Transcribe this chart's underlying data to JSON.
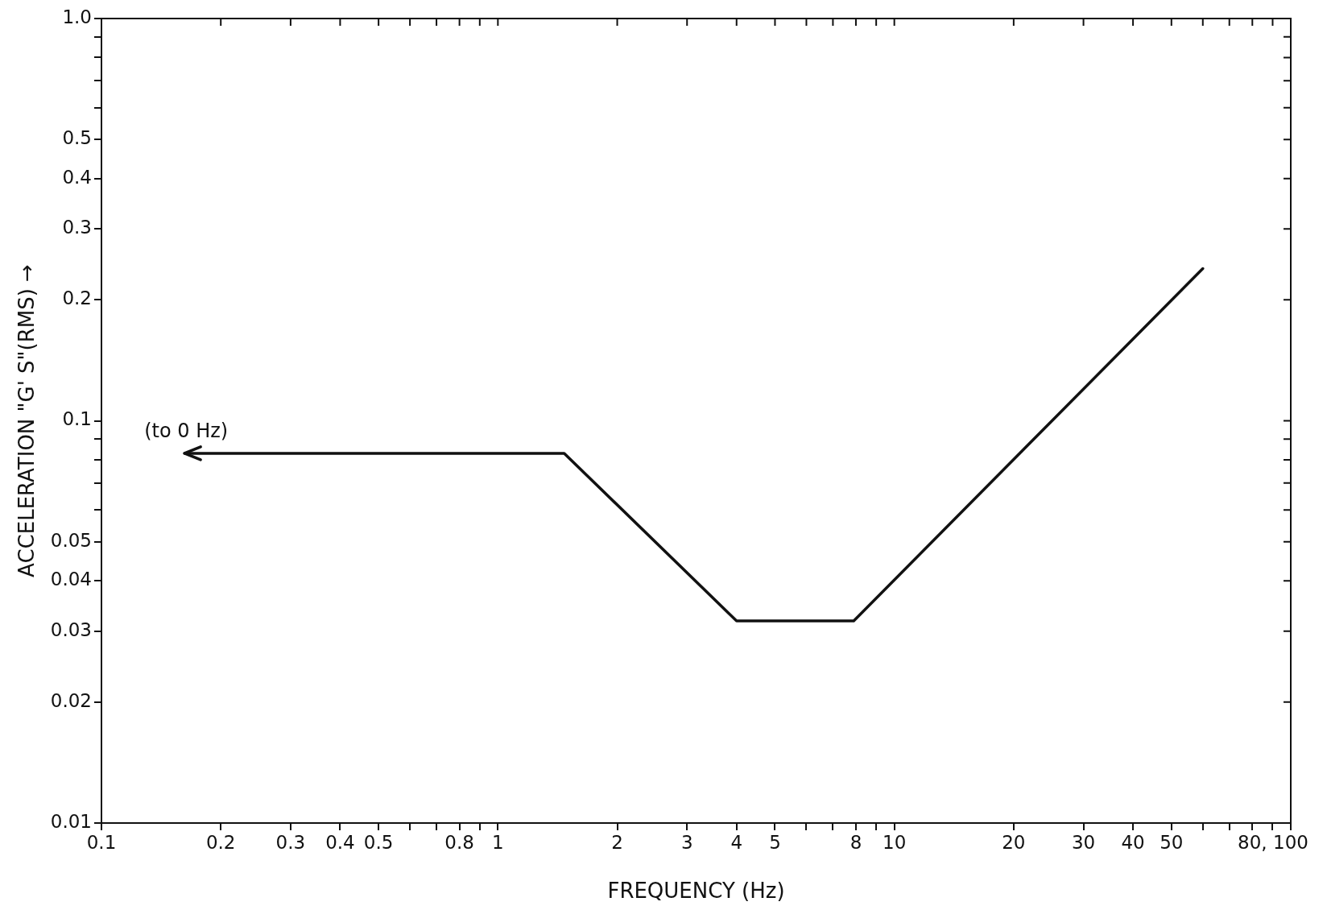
{
  "chart_data": {
    "type": "line",
    "xlabel": "FREQUENCY (Hz)",
    "ylabel": "ACCELERATION \"G' S\"(RMS) →",
    "log": "xy",
    "xlim": [
      0.1,
      100
    ],
    "ylim": [
      0.01,
      1.0
    ],
    "xticks": [
      0.1,
      0.2,
      0.3,
      0.4,
      0.5,
      {
        "value": 0.6,
        "label": null
      },
      {
        "value": 0.7,
        "label": null
      },
      0.8,
      {
        "value": 0.9,
        "label": null
      },
      1,
      2,
      3,
      4,
      5,
      {
        "value": 6,
        "label": null
      },
      {
        "value": 7,
        "label": null
      },
      8,
      {
        "value": 9,
        "label": null
      },
      10,
      20,
      30,
      40,
      50,
      {
        "value": 60,
        "label": null
      },
      {
        "value": 70,
        "label": null
      },
      {
        "value": 80,
        "label": "80,"
      },
      {
        "value": 90,
        "label": null
      },
      100
    ],
    "yticks": [
      0.01,
      0.02,
      0.03,
      0.04,
      0.05,
      {
        "value": 0.06,
        "label": null
      },
      {
        "value": 0.07,
        "label": null
      },
      {
        "value": 0.08,
        "label": null
      },
      {
        "value": 0.09,
        "label": null
      },
      0.1,
      0.2,
      0.3,
      0.4,
      0.5,
      {
        "value": 0.6,
        "label": null
      },
      {
        "value": 0.7,
        "label": null
      },
      {
        "value": 0.8,
        "label": null
      },
      {
        "value": 0.9,
        "label": null
      },
      {
        "value": 1,
        "label": "1.0"
      }
    ],
    "series": [
      {
        "color": "#111111",
        "x": [
          0.162,
          1.47,
          4.0,
          7.9,
          60
        ],
        "values": [
          0.083,
          0.083,
          0.0318,
          0.0318,
          0.239
        ]
      }
    ],
    "annotations": [
      {
        "text": "(to 0 Hz)",
        "x": 0.162,
        "y": 0.083
      }
    ],
    "grid": false,
    "legend": false,
    "marker": "none",
    "line_style": "solid"
  }
}
